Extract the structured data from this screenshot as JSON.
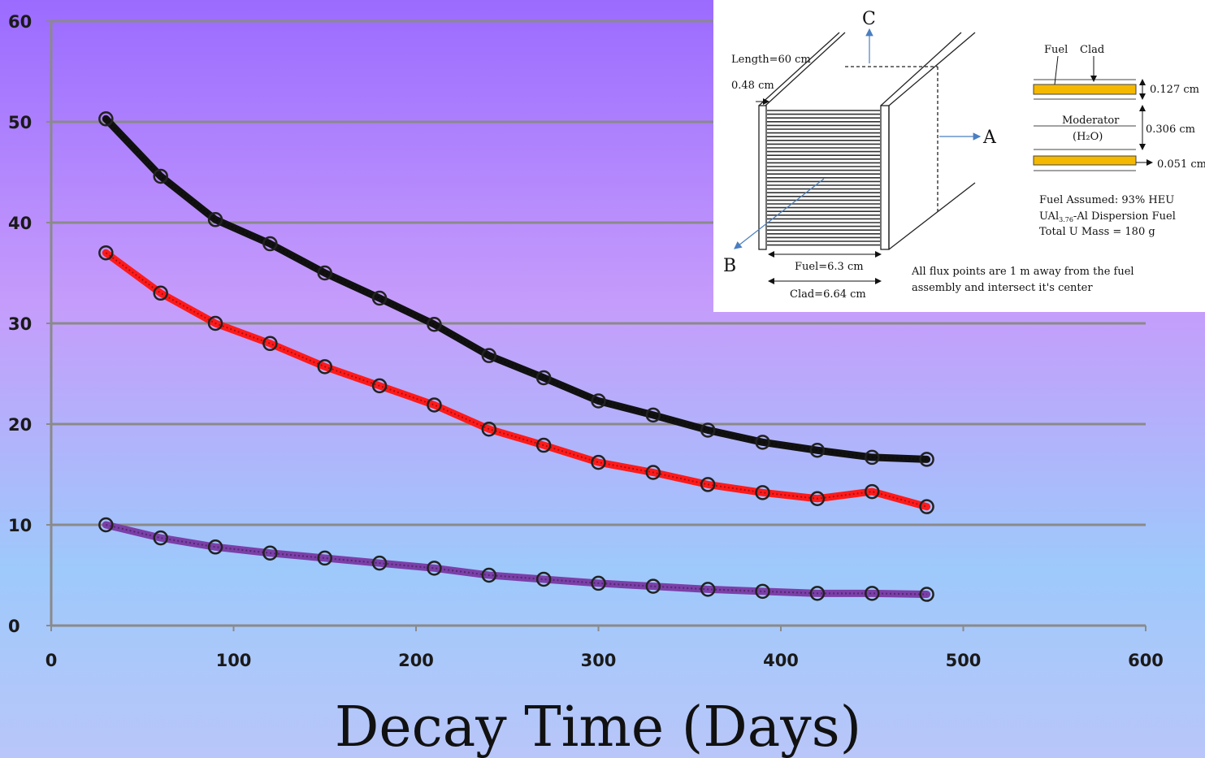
{
  "chart_data": {
    "type": "line",
    "xlabel": "Decay Time (Days)",
    "ylabel": "",
    "xlim": [
      0,
      600
    ],
    "ylim": [
      0,
      60
    ],
    "x_ticks": [
      "0",
      "100",
      "200",
      "300",
      "400",
      "500",
      "600"
    ],
    "y_ticks": [
      "0",
      "10",
      "20",
      "30",
      "40",
      "50",
      "60"
    ],
    "grid": true,
    "x": [
      30,
      60,
      90,
      120,
      150,
      180,
      210,
      240,
      270,
      300,
      330,
      360,
      390,
      420,
      450,
      480
    ],
    "series": [
      {
        "color": "#111111",
        "values": [
          50.3,
          44.6,
          40.3,
          37.9,
          35.0,
          32.5,
          29.9,
          26.8,
          24.6,
          22.3,
          20.9,
          19.4,
          18.2,
          17.4,
          16.7,
          16.5
        ]
      },
      {
        "color": "#ff1a1a",
        "values": [
          37.0,
          33.0,
          30.0,
          28.0,
          25.7,
          23.8,
          21.9,
          19.5,
          17.9,
          16.2,
          15.2,
          14.0,
          13.2,
          12.6,
          13.3,
          11.8
        ]
      },
      {
        "color": "#7b3fa8",
        "values": [
          10.0,
          8.7,
          7.8,
          7.2,
          6.7,
          6.2,
          5.7,
          5.0,
          4.6,
          4.2,
          3.9,
          3.6,
          3.4,
          3.2,
          3.2,
          3.1
        ]
      }
    ],
    "background": {
      "top": "#9b6bff",
      "middle": "#c59cfb",
      "bottom": "#b9c6f9"
    }
  },
  "inset": {
    "labels": {
      "c": "C",
      "a": "A",
      "b": "B",
      "length": "Length=60 cm",
      "thickness": "0.48 cm",
      "fuel_width": "Fuel=6.3 cm",
      "clad_width": "Clad=6.64 cm",
      "fuel": "Fuel",
      "clad": "Clad",
      "dim_fuel_plate": "0.127 cm",
      "moderator": "Moderator",
      "moderator_formula": "(H₂O)",
      "dim_moderator": "0.306 cm",
      "dim_clad": "0.051 cm",
      "fuel_assumed": "Fuel Assumed: 93% HEU",
      "fuel_type_prefix": "UAl",
      "fuel_type_sub": "3.76",
      "fuel_type_suffix": "-Al Dispersion Fuel",
      "total_mass": "Total U Mass = 180 g",
      "note_line1": "All flux points are 1 m away from the fuel",
      "note_line2": "assembly and intersect it's center"
    },
    "fuel_color": "#f5b800"
  }
}
